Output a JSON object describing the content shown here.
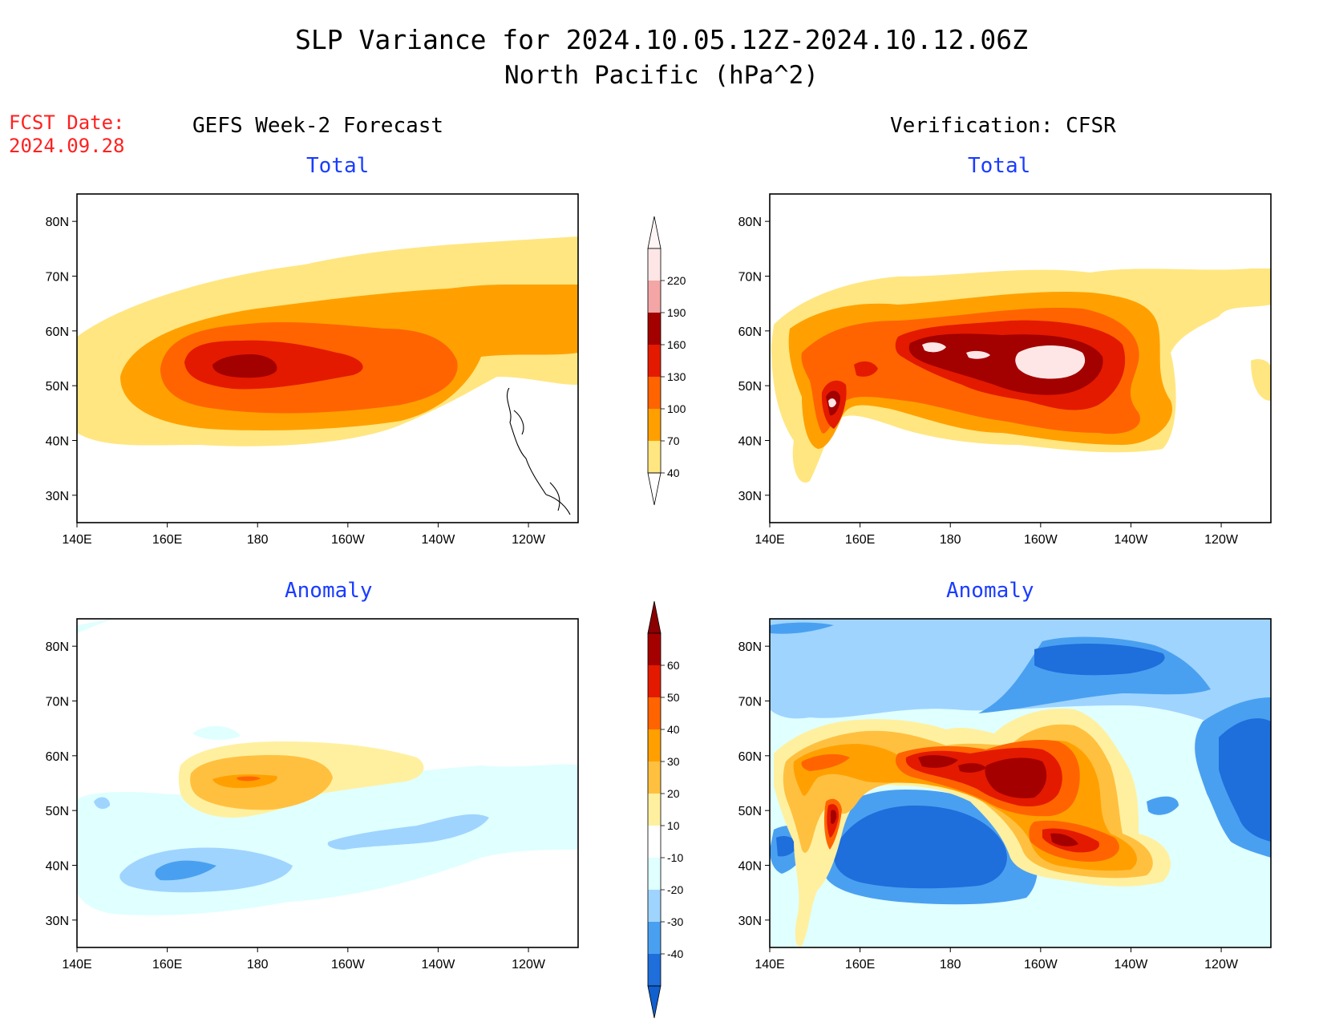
{
  "header": {
    "title_line1": "SLP Variance for 2024.10.05.12Z-2024.10.12.06Z",
    "title_line2": "North Pacific (hPa^2)",
    "fcst_label": "FCST Date:",
    "fcst_date": "2024.09.28"
  },
  "columns": {
    "left": "GEFS Week-2 Forecast",
    "right": "Verification: CFSR"
  },
  "panel_titles": {
    "total": "Total",
    "anomaly": "Anomaly"
  },
  "axes": {
    "lon_labels": [
      "140E",
      "160E",
      "180",
      "160W",
      "140W",
      "120W"
    ],
    "lat_labels": [
      "80N",
      "70N",
      "60N",
      "50N",
      "40N",
      "30N"
    ],
    "lon_range": [
      140,
      251
    ],
    "lat_range": [
      25,
      85
    ]
  },
  "legends": {
    "total": {
      "levels": [
        "220",
        "190",
        "160",
        "130",
        "100",
        "70",
        "40"
      ],
      "colors": [
        "#ffe6e6",
        "#f4a6a6",
        "#a30000",
        "#e31a00",
        "#ff6400",
        "#ffa000",
        "#ffe680"
      ]
    },
    "anomaly": {
      "levels": [
        "60",
        "50",
        "40",
        "30",
        "20",
        "10",
        "-10",
        "-20",
        "-30",
        "-40"
      ],
      "colors": [
        "#a50000",
        "#e31a00",
        "#ff6400",
        "#ffa000",
        "#ffc040",
        "#fff0a0",
        "#ffffff",
        "#e0ffff",
        "#9fd4ff",
        "#4aa0f0",
        "#1e6edc"
      ]
    }
  },
  "colors": {
    "title_accent": "#1a3cff",
    "fcst_accent": "#ff2020"
  }
}
